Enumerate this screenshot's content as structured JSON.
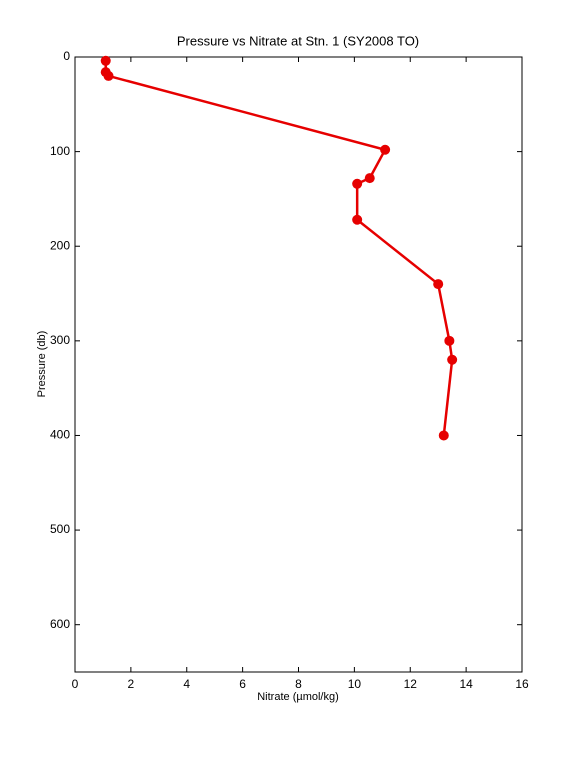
{
  "chart_data": {
    "type": "line",
    "title": "Pressure vs Nitrate at Stn. 1 (SY2008 TO)",
    "x_label": "Nitrate (µmol/kg)",
    "y_label": "Pressure (db)",
    "x": [
      1.1,
      1.1,
      1.2,
      11.1,
      10.55,
      10.1,
      10.1,
      13.0,
      13.4,
      13.5,
      13.2
    ],
    "values": [
      4,
      16,
      20,
      98,
      128,
      134,
      172,
      240,
      300,
      320,
      400
    ],
    "color": "#e60000",
    "markers": true,
    "xlim": [
      0,
      16
    ],
    "xticks": [
      0,
      2,
      4,
      6,
      8,
      10,
      12,
      14,
      16
    ],
    "ylim": [
      0,
      650
    ],
    "yticks": [
      0,
      100,
      200,
      300,
      400,
      500,
      600
    ],
    "y_reversed": true,
    "grid": false
  }
}
